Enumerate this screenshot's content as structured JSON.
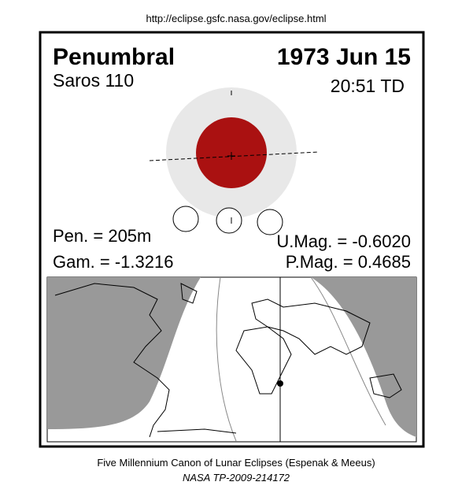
{
  "header": {
    "url": "http://eclipse.gsfc.nasa.gov/eclipse.html",
    "type": "Penumbral",
    "date": "1973 Jun 15",
    "saros": "Saros 110",
    "time": "20:51 TD"
  },
  "stats": {
    "pen": "Pen. = 205m",
    "gam": "Gam. = -1.3216",
    "umag": "U.Mag. = -0.6020",
    "pmag": "P.Mag. = 0.4685"
  },
  "footer": {
    "line1": "Five Millennium Canon of Lunar Eclipses (Espenak & Meeus)",
    "line2": "NASA TP-2009-214172"
  }
}
